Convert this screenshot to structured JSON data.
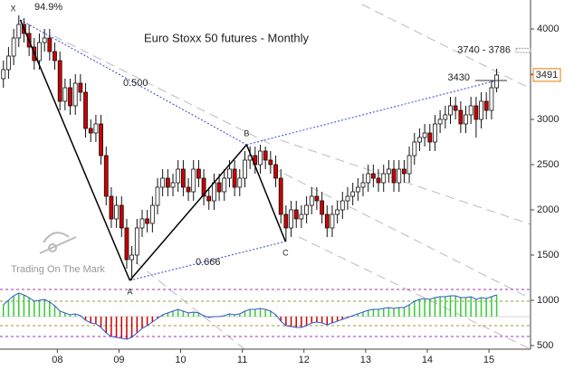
{
  "chart_data": {
    "type": "candlestick",
    "title": "Euro Stoxx 50 futures - Monthly",
    "watermark": "Trading On The Mark",
    "x": [
      2007.125,
      2007.208,
      2007.292,
      2007.375,
      2007.458,
      2007.542,
      2007.625,
      2007.708,
      2007.792,
      2007.875,
      2007.958,
      2008.042,
      2008.125,
      2008.208,
      2008.292,
      2008.375,
      2008.458,
      2008.542,
      2008.625,
      2008.708,
      2008.792,
      2008.875,
      2008.958,
      2009.042,
      2009.125,
      2009.208,
      2009.292,
      2009.375,
      2009.458,
      2009.542,
      2009.625,
      2009.708,
      2009.792,
      2009.875,
      2009.958,
      2010.042,
      2010.125,
      2010.208,
      2010.292,
      2010.375,
      2010.458,
      2010.542,
      2010.625,
      2010.708,
      2010.792,
      2010.875,
      2010.958,
      2011.042,
      2011.125,
      2011.208,
      2011.292,
      2011.375,
      2011.458,
      2011.542,
      2011.625,
      2011.708,
      2011.792,
      2011.875,
      2011.958,
      2012.042,
      2012.125,
      2012.208,
      2012.292,
      2012.375,
      2012.458,
      2012.542,
      2012.625,
      2012.708,
      2012.792,
      2012.875,
      2012.958,
      2013.042,
      2013.125,
      2013.208,
      2013.292,
      2013.375,
      2013.458,
      2013.542,
      2013.625,
      2013.708,
      2013.792,
      2013.875,
      2013.958,
      2014.042,
      2014.125,
      2014.208,
      2014.292,
      2014.375,
      2014.458,
      2014.542,
      2014.625,
      2014.708,
      2014.792,
      2014.875,
      2014.958,
      2015.042,
      2015.125
    ],
    "open": [
      3450,
      3550,
      3700,
      3900,
      4050,
      3950,
      3800,
      3650,
      3850,
      3900,
      3750,
      3650,
      3200,
      3350,
      3150,
      3400,
      3300,
      2900,
      2850,
      2950,
      2600,
      2150,
      1900,
      2050,
      1800,
      1450,
      1500,
      1800,
      1900,
      1850,
      2050,
      2250,
      2350,
      2250,
      2300,
      2450,
      2250,
      2200,
      2450,
      2350,
      2150,
      2100,
      2300,
      2200,
      2350,
      2450,
      2250,
      2350,
      2550,
      2600,
      2500,
      2650,
      2550,
      2500,
      2350,
      1950,
      1800,
      2000,
      1900,
      1950,
      2050,
      2150,
      2100,
      1950,
      1800,
      1950,
      2000,
      2100,
      2150,
      2200,
      2250,
      2300,
      2400,
      2350,
      2300,
      2400,
      2450,
      2300,
      2450,
      2400,
      2600,
      2750,
      2800,
      2850,
      2750,
      2950,
      3000,
      3050,
      3150,
      3100,
      2950,
      3050,
      3150,
      3000,
      3200,
      3100,
      3350
    ],
    "high": [
      3650,
      3800,
      4000,
      4150,
      4120,
      4050,
      3900,
      3950,
      4000,
      4000,
      3850,
      3750,
      3450,
      3450,
      3500,
      3500,
      3400,
      3000,
      3050,
      3050,
      2700,
      2250,
      2150,
      2150,
      1900,
      1600,
      1900,
      2000,
      2000,
      2150,
      2350,
      2450,
      2450,
      2400,
      2550,
      2550,
      2350,
      2550,
      2550,
      2450,
      2250,
      2400,
      2400,
      2450,
      2550,
      2550,
      2450,
      2650,
      2700,
      2700,
      2720,
      2700,
      2650,
      2600,
      2450,
      2050,
      2100,
      2100,
      2050,
      2150,
      2250,
      2250,
      2200,
      2050,
      2050,
      2100,
      2200,
      2250,
      2300,
      2350,
      2400,
      2500,
      2500,
      2450,
      2500,
      2550,
      2550,
      2550,
      2550,
      2700,
      2850,
      2900,
      2950,
      2950,
      3050,
      3100,
      3150,
      3250,
      3250,
      3200,
      3150,
      3250,
      3250,
      3300,
      3300,
      3430,
      3560
    ],
    "low": [
      3350,
      3450,
      3600,
      3800,
      3850,
      3700,
      3550,
      3550,
      3750,
      3650,
      3550,
      3100,
      3100,
      3050,
      3050,
      3200,
      2800,
      2750,
      2750,
      2500,
      2050,
      1800,
      1800,
      1700,
      1350,
      1220,
      1400,
      1700,
      1750,
      1750,
      1950,
      2150,
      2150,
      2150,
      2200,
      2150,
      2100,
      2100,
      2250,
      2050,
      2000,
      2000,
      2100,
      2100,
      2250,
      2150,
      2150,
      2250,
      2450,
      2400,
      2400,
      2450,
      2400,
      2250,
      1850,
      1650,
      1700,
      1800,
      1800,
      1850,
      1950,
      2000,
      1850,
      1700,
      1700,
      1850,
      1900,
      2000,
      2050,
      2100,
      2150,
      2200,
      2250,
      2200,
      2200,
      2300,
      2200,
      2200,
      2300,
      2300,
      2500,
      2650,
      2700,
      2650,
      2650,
      2850,
      2900,
      2950,
      3000,
      2850,
      2850,
      2950,
      2800,
      2900,
      3000,
      3000,
      3300
    ],
    "close": [
      3550,
      3700,
      3900,
      4050,
      3950,
      3800,
      3650,
      3850,
      3900,
      3750,
      3650,
      3200,
      3350,
      3150,
      3400,
      3300,
      2900,
      2850,
      2950,
      2600,
      2150,
      1900,
      2050,
      1800,
      1450,
      1500,
      1800,
      1900,
      1850,
      2050,
      2250,
      2350,
      2250,
      2300,
      2450,
      2250,
      2200,
      2450,
      2350,
      2150,
      2100,
      2300,
      2200,
      2350,
      2450,
      2250,
      2350,
      2550,
      2600,
      2500,
      2650,
      2550,
      2500,
      2350,
      1950,
      1800,
      2000,
      1900,
      1950,
      2050,
      2150,
      2100,
      1950,
      1800,
      1950,
      2000,
      2100,
      2150,
      2200,
      2250,
      2300,
      2400,
      2350,
      2300,
      2400,
      2450,
      2300,
      2450,
      2400,
      2600,
      2750,
      2800,
      2850,
      2750,
      2950,
      3000,
      3050,
      3150,
      3100,
      2950,
      3050,
      3150,
      3000,
      3200,
      3100,
      3350,
      3491
    ],
    "up_color": "#ffffff",
    "down_color": "#cc0000",
    "xlim": [
      2007.07,
      2015.66
    ],
    "ylim": [
      460,
      4320
    ],
    "xticks": [
      {
        "value": 2008,
        "label": "08"
      },
      {
        "value": 2009,
        "label": "09"
      },
      {
        "value": 2010,
        "label": "10"
      },
      {
        "value": 2011,
        "label": "11"
      },
      {
        "value": 2012,
        "label": "12"
      },
      {
        "value": 2013,
        "label": "13"
      },
      {
        "value": 2014,
        "label": "14"
      },
      {
        "value": 2015,
        "label": "15"
      }
    ],
    "yticks": [
      500,
      1000,
      1500,
      2000,
      2500,
      3000,
      3500,
      4000
    ],
    "last_price": 3491,
    "level": 3430,
    "target_zone": {
      "low": 3740,
      "high": 3786,
      "label": "3740 - 3786"
    },
    "pattern": [
      {
        "label": "X",
        "x": 2007.4,
        "value": 4100
      },
      {
        "label": "A",
        "x": 2009.175,
        "value": 1220
      },
      {
        "label": "B",
        "x": 2011.07,
        "value": 2720
      },
      {
        "label": "C",
        "x": 2011.7,
        "value": 1650
      }
    ],
    "annotations": [
      "94.9%",
      "0.500",
      "0.666"
    ],
    "oscillator": {
      "baseline": 820,
      "levels": [
        1120,
        990,
        720,
        600
      ],
      "up_color": "#33cc33",
      "down_color": "#cc0000",
      "line_color": "#3355cc",
      "values": [
        950,
        1000,
        1050,
        1080,
        1060,
        1030,
        990,
        1000,
        1010,
        980,
        940,
        880,
        860,
        840,
        850,
        830,
        780,
        750,
        740,
        700,
        640,
        600,
        590,
        580,
        570,
        590,
        640,
        690,
        720,
        760,
        800,
        840,
        860,
        880,
        900,
        880,
        860,
        870,
        860,
        830,
        810,
        820,
        820,
        830,
        850,
        840,
        850,
        880,
        900,
        900,
        910,
        900,
        880,
        840,
        770,
        720,
        710,
        700,
        700,
        720,
        750,
        760,
        750,
        730,
        750,
        770,
        790,
        810,
        830,
        850,
        870,
        890,
        900,
        900,
        910,
        920,
        910,
        920,
        920,
        950,
        990,
        1010,
        1020,
        1010,
        1030,
        1040,
        1040,
        1050,
        1050,
        1030,
        1030,
        1040,
        1010,
        1030,
        1020,
        1040,
        1060
      ]
    }
  }
}
